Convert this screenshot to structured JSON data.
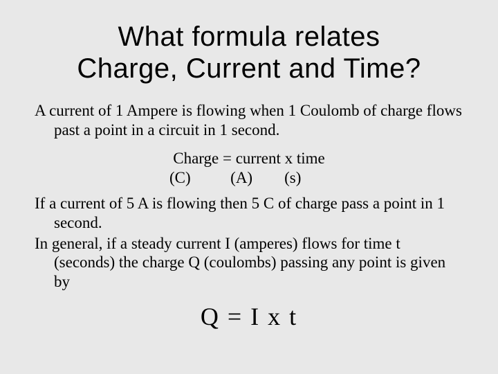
{
  "background_color": "#e8e8e8",
  "text_color": "#000000",
  "title": {
    "line1": "What formula relates",
    "line2": "Charge, Current and Time?",
    "font_family": "Comic Sans MS",
    "font_size_pt": 40
  },
  "body": {
    "font_family": "Times New Roman",
    "font_size_pt": 23,
    "definition": "A current of 1 Ampere is flowing when 1 Coulomb of charge flows past a point in a circuit in 1 second.",
    "word_equation": "Charge = current x time",
    "units_line": "(C)          (A)        (s)",
    "example": "If a current of 5 A is flowing then 5 C of charge pass a point in 1 second.",
    "general": "In general, if a steady current I (amperes) flows for time t (seconds) the charge Q (coulombs) passing any point is given by"
  },
  "formula": {
    "text": "Q = I x t",
    "font_size_pt": 36
  }
}
